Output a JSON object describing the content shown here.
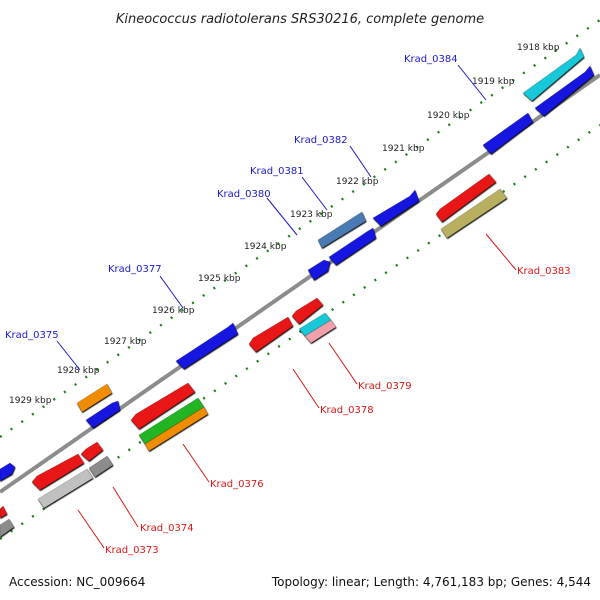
{
  "title": "Kineococcus radiotolerans SRS30216, complete genome",
  "footer": {
    "accession": "Accession: NC_009664",
    "summary": "Topology: linear; Length: 4,761,183 bp; Genes: 4,544"
  },
  "colors": {
    "backbone": "#8c8c8c",
    "ticks": "#1f7f1f",
    "forward_label": "#1a1acc",
    "reverse_label": "#d81818",
    "blue": "#1414e0",
    "red": "#e81414",
    "green": "#22b422",
    "orange": "#f08c00",
    "cyan": "#14c8d8",
    "pink": "#f0a0a8",
    "gray": "#8c8c8c",
    "lightgray": "#c0c0c0",
    "olive": "#b8b060",
    "slate": "#4a7ab4"
  },
  "scale_labels": [
    "1918 kbp",
    "1919 kbp",
    "1920 kbp",
    "1921 kbp",
    "1922 kbp",
    "1923 kbp",
    "1924 kbp",
    "1925 kbp",
    "1926 kbp",
    "1927 kbp",
    "1928 kbp",
    "1929 kbp"
  ],
  "gene_labels": {
    "krad_0384": "Krad_0384",
    "krad_0382": "Krad_0382",
    "krad_0381": "Krad_0381",
    "krad_0380": "Krad_0380",
    "krad_0377": "Krad_0377",
    "krad_0375": "Krad_0375",
    "krad_0383": "Krad_0383",
    "krad_0379": "Krad_0379",
    "krad_0378": "Krad_0378",
    "krad_0376": "Krad_0376",
    "krad_0374": "Krad_0374",
    "krad_0373": "Krad_0373"
  }
}
